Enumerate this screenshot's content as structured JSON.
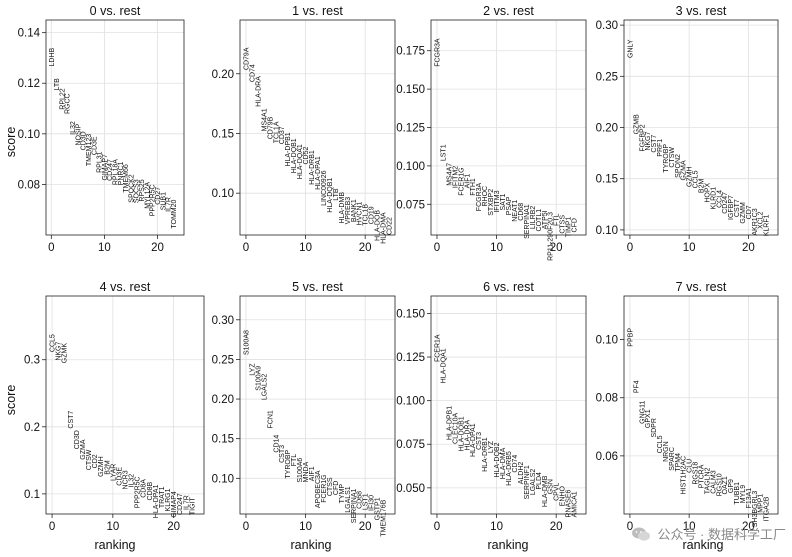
{
  "figure": {
    "ylabel": "score",
    "xlabel": "ranking",
    "watermark": "公众号 · 数据科学工厂"
  },
  "chart_data": [
    {
      "type": "scatter",
      "title": "0 vs. rest",
      "xlim": [
        -1,
        25
      ],
      "ylim": [
        0.06,
        0.145
      ],
      "xticks": [
        0,
        10,
        20
      ],
      "yticks": [
        0.08,
        0.1,
        0.12,
        0.14
      ],
      "yfmt": 2,
      "genes": [
        "LDHB",
        "LTB",
        "RPL22",
        "RGCC",
        "IL32",
        "NOSIP",
        "CD3D",
        "TMEM123",
        "CD3E",
        "RPL31",
        "GIMAP7",
        "CD247",
        "RPL18A",
        "PNRC1",
        "TMEM66",
        "SPOCK2",
        "SOCS3",
        "RPS25",
        "MYL12A",
        "PPP2R5C",
        "CD27",
        "SUB1",
        "IL7R",
        "TOMM20"
      ],
      "values": [
        0.134,
        0.122,
        0.118,
        0.116,
        0.105,
        0.104,
        0.101,
        0.1,
        0.099,
        0.093,
        0.092,
        0.09,
        0.09,
        0.089,
        0.088,
        0.084,
        0.082,
        0.082,
        0.081,
        0.08,
        0.079,
        0.077,
        0.075,
        0.074
      ]
    },
    {
      "type": "scatter",
      "title": "1 vs. rest",
      "xlim": [
        -1,
        25
      ],
      "ylim": [
        0.065,
        0.245
      ],
      "xticks": [
        0,
        10,
        20
      ],
      "yticks": [
        0.1,
        0.15,
        0.2
      ],
      "yfmt": 2,
      "genes": [
        "CD79A",
        "CD74",
        "HLA-DRA",
        "MS4A1",
        "CD79B",
        "TCL1A",
        "CD37",
        "HLA-DPB1",
        "HLA-DQB1",
        "HLA-DQA1",
        "CD52",
        "HLA-DRB1",
        "HLA-DPA1",
        "LINC00926",
        "HLA-DQB1",
        "LTB",
        "HLA-DMB",
        "VPREB3",
        "BANK1",
        "HVCN1",
        "TCL1B",
        "CD19",
        "HLA-DOB",
        "HLA-DMA",
        "CD22"
      ],
      "values": [
        0.222,
        0.208,
        0.198,
        0.171,
        0.164,
        0.16,
        0.156,
        0.151,
        0.146,
        0.141,
        0.139,
        0.136,
        0.131,
        0.119,
        0.113,
        0.104,
        0.101,
        0.097,
        0.095,
        0.093,
        0.091,
        0.089,
        0.086,
        0.084,
        0.08
      ]
    },
    {
      "type": "scatter",
      "title": "2 vs. rest",
      "xlim": [
        -1,
        25
      ],
      "ylim": [
        0.055,
        0.195
      ],
      "xticks": [
        0,
        10,
        20
      ],
      "yticks": [
        0.075,
        0.1,
        0.125,
        0.15,
        0.175
      ],
      "yfmt": 3,
      "genes": [
        "FCGR3A",
        "LST1",
        "MS4A7",
        "IFITM2",
        "FCER1G",
        "AIF1",
        "FTH1",
        "FCGR3A",
        "RHOC",
        "STXBP2",
        "IFITM3",
        "SAT1",
        "PSAP",
        "NEAT1",
        "CD68",
        "SERPINA1",
        "LILRB2",
        "COTL1",
        "ATP5I",
        "RP11-290F20.3",
        "FTL",
        "CTSS",
        "TIMP1",
        "CFD"
      ],
      "values": [
        0.183,
        0.114,
        0.102,
        0.1,
        0.099,
        0.095,
        0.092,
        0.089,
        0.087,
        0.085,
        0.084,
        0.082,
        0.08,
        0.078,
        0.076,
        0.075,
        0.074,
        0.072,
        0.071,
        0.07,
        0.069,
        0.068,
        0.067,
        0.066
      ]
    },
    {
      "type": "scatter",
      "title": "3 vs. rest",
      "xlim": [
        -1,
        25
      ],
      "ylim": [
        0.095,
        0.305
      ],
      "xticks": [
        0,
        10,
        20
      ],
      "yticks": [
        0.1,
        0.15,
        0.2,
        0.25,
        0.3
      ],
      "yfmt": 2,
      "genes": [
        "GNLY",
        "GZMB",
        "FGFBP2",
        "NKG7",
        "CST7",
        "PRF1",
        "TYROBP",
        "CTSW",
        "SPON2",
        "GZMA",
        "GZMH",
        "CCL5",
        "B2M",
        "HOPX",
        "KLRD1",
        "CCL4",
        "CD247",
        "IGFBP7",
        "CST7",
        "GZMM",
        "CD7",
        "AKR1C3",
        "XCL2",
        "KLRF1"
      ],
      "values": [
        0.286,
        0.213,
        0.203,
        0.196,
        0.193,
        0.189,
        0.184,
        0.181,
        0.174,
        0.168,
        0.162,
        0.158,
        0.15,
        0.146,
        0.142,
        0.139,
        0.137,
        0.134,
        0.13,
        0.127,
        0.124,
        0.121,
        0.118,
        0.115
      ]
    },
    {
      "type": "scatter",
      "title": "4 vs. rest",
      "xlim": [
        -1,
        25
      ],
      "ylim": [
        0.07,
        0.395
      ],
      "xticks": [
        0,
        10,
        20
      ],
      "yticks": [
        0.1,
        0.2,
        0.3
      ],
      "yfmt": 1,
      "genes": [
        "CCL5",
        "NKG7",
        "GZMK",
        "CST7",
        "CD3D",
        "GZMA",
        "CTSW",
        "CD2",
        "GZMH",
        "B2M",
        "LYAR",
        "CD3E",
        "NCR3",
        "IL32",
        "PPP2R5C",
        "CD8A",
        "CD8B",
        "HLA-DPA1",
        "TRAT1",
        "KLRG1",
        "GIMAP4",
        "CD247",
        "IL7R",
        "TIGIT"
      ],
      "values": [
        0.338,
        0.327,
        0.325,
        0.224,
        0.195,
        0.181,
        0.166,
        0.159,
        0.156,
        0.15,
        0.145,
        0.14,
        0.135,
        0.13,
        0.126,
        0.122,
        0.118,
        0.114,
        0.111,
        0.108,
        0.104,
        0.101,
        0.098,
        0.095
      ]
    },
    {
      "type": "scatter",
      "title": "5 vs. rest",
      "xlim": [
        -1,
        25
      ],
      "ylim": [
        0.055,
        0.33
      ],
      "xticks": [
        0,
        10,
        20
      ],
      "yticks": [
        0.1,
        0.15,
        0.2,
        0.25,
        0.3
      ],
      "yfmt": 2,
      "genes": [
        "S100A8",
        "LYZ",
        "S100A9",
        "LGALS2",
        "FCN1",
        "CD14",
        "CST3",
        "TYROBP",
        "FTL",
        "S100A6",
        "MNDA",
        "AIF1",
        "APOBEC3A",
        "FCER1G",
        "CTSS",
        "CFD",
        "TYMP",
        "LGALS1",
        "SERPINA1",
        "CD68",
        "LST1",
        "IFI30",
        "GSTP1",
        "TMEM176B"
      ],
      "values": [
        0.287,
        0.245,
        0.242,
        0.232,
        0.186,
        0.155,
        0.142,
        0.136,
        0.131,
        0.126,
        0.121,
        0.115,
        0.11,
        0.105,
        0.101,
        0.097,
        0.093,
        0.09,
        0.087,
        0.084,
        0.081,
        0.079,
        0.076,
        0.073
      ]
    },
    {
      "type": "scatter",
      "title": "6 vs. rest",
      "xlim": [
        -1,
        25
      ],
      "ylim": [
        0.035,
        0.16
      ],
      "xticks": [
        0,
        10,
        20
      ],
      "yticks": [
        0.05,
        0.075,
        0.1,
        0.125,
        0.15
      ],
      "yfmt": 3,
      "genes": [
        "FCER1A",
        "HLA-DQA1",
        "HLA-DPB1",
        "CLEC10A",
        "HLA-DQB1",
        "HLA-DRA",
        "HLA-DPA1",
        "CST3",
        "HLA-DRB1",
        "LYZ",
        "HLA-DQB2",
        "HLA-DMA",
        "HLA-DRB5",
        "CD74",
        "ALDH2",
        "SERPINF1",
        "LGALS2",
        "PLD4",
        "HLA-DMB",
        "GSN",
        "CPVL",
        "ENHO",
        "RNASE6",
        "AMICA1"
      ],
      "values": [
        0.138,
        0.13,
        0.097,
        0.093,
        0.091,
        0.089,
        0.087,
        0.082,
        0.079,
        0.077,
        0.076,
        0.073,
        0.071,
        0.069,
        0.065,
        0.063,
        0.061,
        0.059,
        0.057,
        0.055,
        0.053,
        0.051,
        0.049,
        0.048
      ]
    },
    {
      "type": "scatter",
      "title": "7 vs. rest",
      "xlim": [
        -1,
        25
      ],
      "ylim": [
        0.04,
        0.115
      ],
      "xticks": [
        0,
        10,
        20
      ],
      "yticks": [
        0.06,
        0.08,
        0.1
      ],
      "yfmt": 2,
      "genes": [
        "PPBP",
        "PF4",
        "GNG11",
        "GPX1",
        "SDPR",
        "CCL5",
        "NRGN",
        "SPARC",
        "TPM4",
        "HIST1H2AC",
        "CLU",
        "RGS18",
        "PTCRA",
        "TAGLN2",
        "CALM3",
        "RGS10",
        "OAZ1",
        "GP9",
        "TUBB1",
        "MYL9",
        "F13A1",
        "SH3BGRL3",
        "MPP1",
        "ITGA2B"
      ],
      "values": [
        0.104,
        0.086,
        0.079,
        0.076,
        0.073,
        0.067,
        0.065,
        0.063,
        0.061,
        0.06,
        0.059,
        0.058,
        0.057,
        0.056,
        0.055,
        0.054,
        0.053,
        0.052,
        0.051,
        0.05,
        0.049,
        0.048,
        0.047,
        0.046
      ]
    }
  ]
}
